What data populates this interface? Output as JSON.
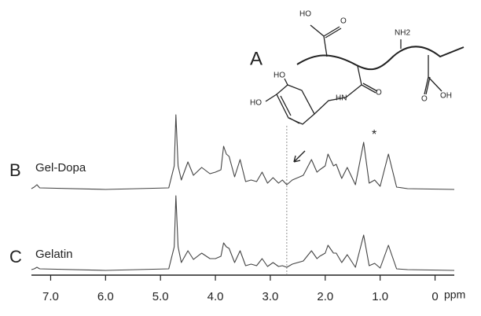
{
  "chart_data": {
    "type": "line",
    "x_label": "ppm",
    "xlim": [
      7.35,
      -0.35
    ],
    "ylim": [
      0,
      100
    ],
    "xticks": [
      {
        "value": 7,
        "label": "7.0"
      },
      {
        "value": 6,
        "label": "6.0"
      },
      {
        "value": 5,
        "label": "5.0"
      },
      {
        "value": 4,
        "label": "4.0"
      },
      {
        "value": 3,
        "label": "3.0"
      },
      {
        "value": 2,
        "label": "2.0"
      },
      {
        "value": 1,
        "label": "1.0"
      },
      0
    ],
    "reference_line": 2.7,
    "x": [
      7.35,
      7.3,
      7.25,
      7.2,
      6.0,
      4.85,
      4.75,
      4.72,
      4.68,
      4.62,
      4.5,
      4.4,
      4.25,
      4.1,
      4.0,
      3.9,
      3.85,
      3.8,
      3.75,
      3.65,
      3.55,
      3.45,
      3.35,
      3.25,
      3.15,
      3.05,
      2.95,
      2.85,
      2.78,
      2.7,
      2.6,
      2.4,
      2.25,
      2.15,
      2.1,
      2.0,
      1.95,
      1.85,
      1.8,
      1.7,
      1.6,
      1.45,
      1.3,
      1.2,
      1.1,
      1.0,
      0.85,
      0.7,
      0.5,
      -0.35
    ],
    "series": [
      {
        "name": "Gel-Dopa",
        "panel": "B",
        "color": "#444444",
        "values": [
          1,
          3,
          6,
          2,
          0,
          2,
          30,
          95,
          30,
          12,
          35,
          18,
          28,
          20,
          22,
          25,
          55,
          45,
          42,
          16,
          38,
          10,
          12,
          10,
          22,
          8,
          15,
          8,
          12,
          6,
          12,
          18,
          38,
          22,
          25,
          30,
          45,
          30,
          32,
          14,
          28,
          6,
          60,
          8,
          12,
          4,
          45,
          3,
          1,
          0
        ]
      },
      {
        "name": "Gelatin",
        "panel": "C",
        "color": "#444444",
        "values": [
          1,
          2,
          4,
          2,
          0,
          2,
          30,
          95,
          30,
          10,
          25,
          14,
          22,
          15,
          15,
          18,
          35,
          30,
          28,
          10,
          25,
          6,
          8,
          6,
          15,
          5,
          10,
          5,
          6,
          4,
          8,
          12,
          25,
          15,
          18,
          22,
          32,
          22,
          22,
          10,
          20,
          4,
          45,
          6,
          9,
          3,
          32,
          2,
          1,
          0
        ]
      }
    ]
  },
  "structure": {
    "label": "A",
    "atoms": [
      "HO",
      "O",
      "NH2",
      "HN",
      "O",
      "O",
      "OH",
      "HO",
      "HO"
    ],
    "marker": "*"
  }
}
